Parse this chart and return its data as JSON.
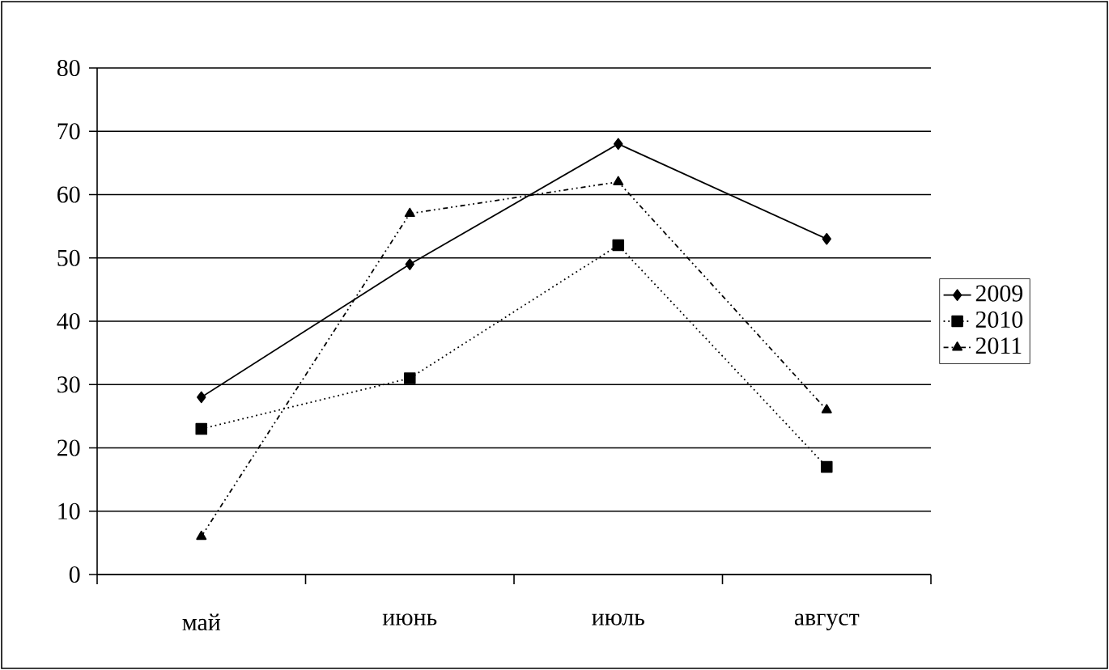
{
  "chart_data": {
    "type": "line",
    "categories": [
      "май",
      "июнь",
      "июль",
      "август"
    ],
    "series": [
      {
        "name": "2009",
        "color": "#000000",
        "values": [
          28,
          49,
          68,
          53
        ],
        "marker": "diamond",
        "line_style": "solid"
      },
      {
        "name": "2010",
        "color": "#000000",
        "values": [
          23,
          31,
          52,
          17
        ],
        "marker": "square",
        "line_style": "dotted"
      },
      {
        "name": "2011",
        "color": "#000000",
        "values": [
          6,
          57,
          62,
          26
        ],
        "marker": "triangle",
        "line_style": "dashdot"
      }
    ],
    "ylim": [
      0,
      80
    ],
    "yticks": [
      0,
      10,
      20,
      30,
      40,
      50,
      60,
      70,
      80
    ],
    "grid": "y",
    "legend": "right"
  }
}
